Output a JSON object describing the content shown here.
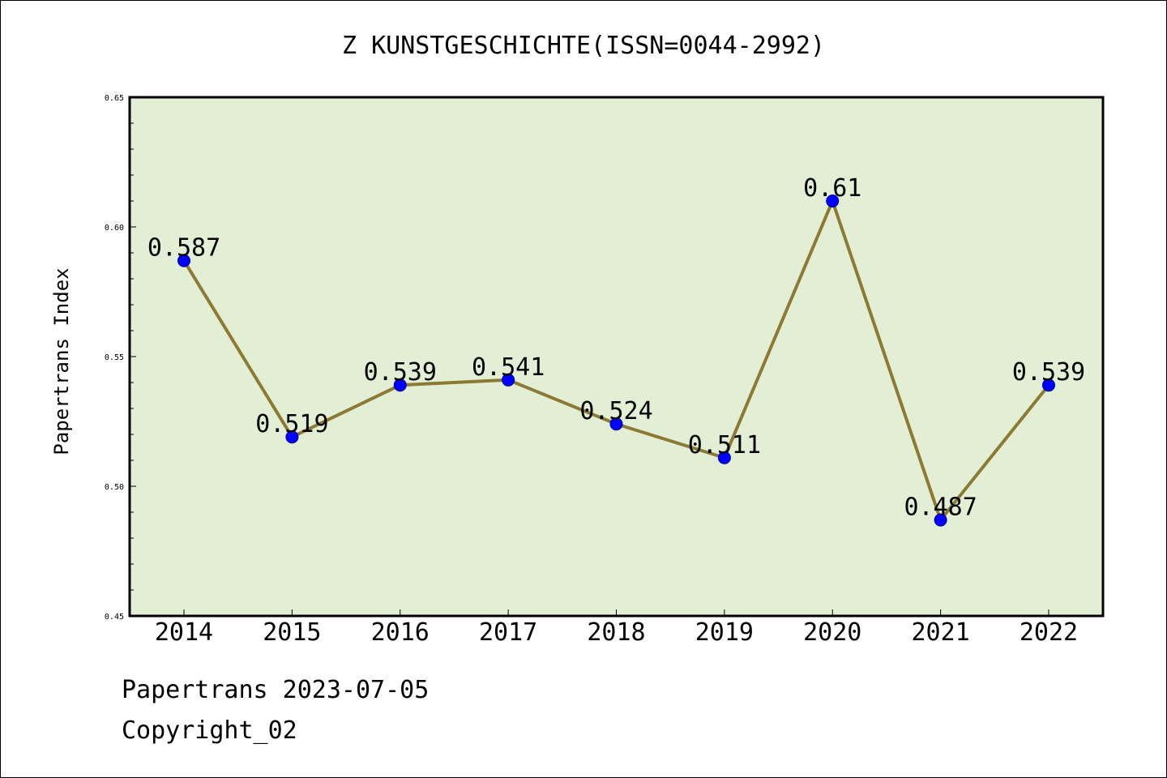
{
  "chart_data": {
    "type": "line",
    "title": "Z KUNSTGESCHICHTE(ISSN=0044-2992)",
    "xlabel": "",
    "ylabel": "Papertrans Index",
    "categories": [
      "2014",
      "2015",
      "2016",
      "2017",
      "2018",
      "2019",
      "2020",
      "2021",
      "2022"
    ],
    "series": [
      {
        "values": [
          0.587,
          0.519,
          0.539,
          0.541,
          0.524,
          0.511,
          0.61,
          0.487,
          0.539
        ],
        "data_labels": [
          "0.587",
          "0.519",
          "0.539",
          "0.541",
          "0.524",
          "0.511",
          "0.61",
          "0.487",
          "0.539"
        ]
      }
    ],
    "ylim": [
      0.45,
      0.65
    ],
    "y_ticks": [
      "0.45",
      "0.50",
      "0.55",
      "0.60",
      "0.65"
    ],
    "grid": false,
    "colors": {
      "plot_background": "#e2efd4",
      "line": "#8c7a34",
      "marker": "#0000ff"
    }
  },
  "footer": {
    "line1": "Papertrans 2023-07-05",
    "line2": "Copyright_02"
  }
}
